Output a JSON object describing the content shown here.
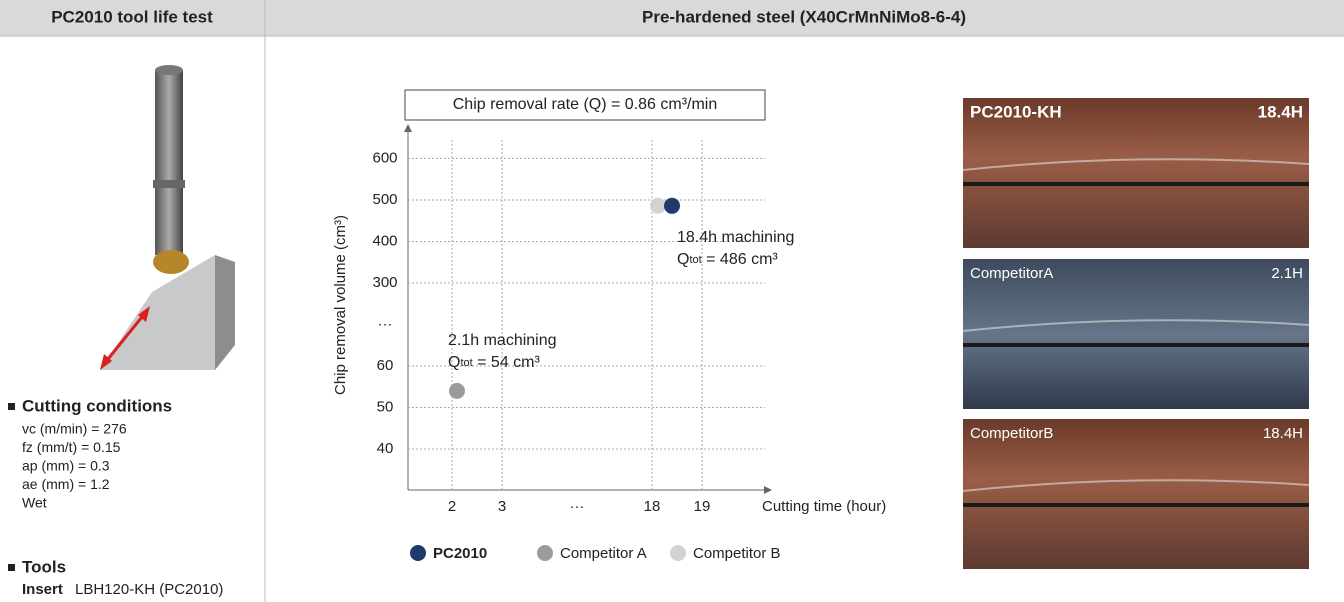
{
  "header": {
    "left": "PC2010 tool life test",
    "right": "Pre-hardened steel (X40CrMnNiMo8-6-4)"
  },
  "conditions": {
    "title": "Cutting conditions",
    "items": [
      "vc (m/min) = 276",
      "fz (mm/t) = 0.15",
      "ap (mm) = 0.3",
      "ae (mm) = 1.2",
      "Wet"
    ]
  },
  "tools": {
    "title": "Tools",
    "label": "Insert",
    "text": "LBH120-KH (PC2010)"
  },
  "chart_data": {
    "type": "scatter",
    "title": "Chip removal rate (Q) = 0.86 cm³/min",
    "y_label": "Chip removal volume (cm³)",
    "x_label": "Cutting time (hour)",
    "xticks": [
      2,
      3,
      "···",
      18,
      19
    ],
    "yticks": [
      40,
      50,
      60,
      "···",
      300,
      400,
      500,
      600
    ],
    "grid": true,
    "series": [
      {
        "name": "PC2010",
        "color": "#1f3a6b",
        "x": [
          18.4
        ],
        "values": [
          486
        ]
      },
      {
        "name": "Competitor A",
        "color": "#9b9b9b",
        "x": [
          2.1
        ],
        "values": [
          54
        ]
      },
      {
        "name": "Competitor B",
        "color": "#d2d2d2",
        "x": [
          18.4
        ],
        "values": [
          486
        ]
      }
    ],
    "annotations": [
      {
        "line1": "18.4h machining",
        "q": "Q",
        "sub": "tot",
        "rest": " = 486 cm³"
      },
      {
        "line1": "2.1h machining",
        "q": "Q",
        "sub": "tot",
        "rest": " = 54 cm³"
      }
    ]
  },
  "photos": [
    {
      "left": "PC2010-KH",
      "right": "18.4H"
    },
    {
      "left": "CompetitorA",
      "right": "2.1H"
    },
    {
      "left": "CompetitorB",
      "right": "18.4H"
    }
  ]
}
